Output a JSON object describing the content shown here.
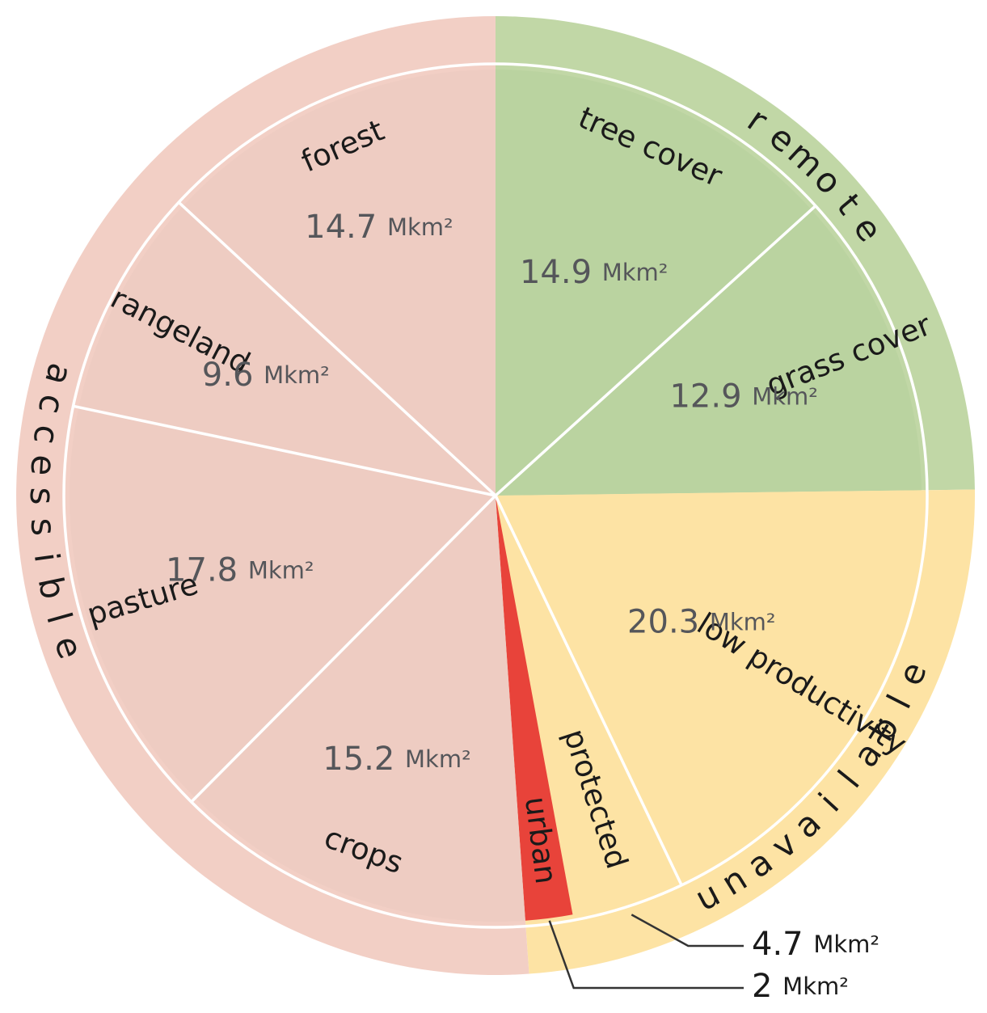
{
  "chart_data": {
    "type": "pie",
    "title": "",
    "unit": "Mkm²",
    "slices": [
      {
        "label": "tree cover",
        "value": 14.9,
        "value_text": "14.9",
        "group": "remote"
      },
      {
        "label": "grass cover",
        "value": 12.9,
        "value_text": "12.9",
        "group": "remote"
      },
      {
        "label": "low productivity",
        "value": 20.3,
        "value_text": "20.3",
        "group": "unavailable"
      },
      {
        "label": "protected",
        "value": 4.7,
        "value_text": "4.7",
        "group": "unavailable"
      },
      {
        "label": "urban",
        "value": 2,
        "value_text": "2",
        "group": "unavailable"
      },
      {
        "label": "crops",
        "value": 15.2,
        "value_text": "15.2",
        "group": "accessible"
      },
      {
        "label": "pasture",
        "value": 17.8,
        "value_text": "17.8",
        "group": "accessible"
      },
      {
        "label": "rangeland",
        "value": 9.6,
        "value_text": "9.6",
        "group": "accessible"
      },
      {
        "label": "forest",
        "value": 14.7,
        "value_text": "14.7",
        "group": "accessible"
      }
    ],
    "groups": [
      {
        "name": "remote",
        "label": "r e m o t e",
        "color": "#c1d7a6",
        "inner_color": "#bad3a0"
      },
      {
        "name": "unavailable",
        "label": "u n a v a i l a b l e",
        "color": "#fde3a4",
        "inner_color": "#fde3a4"
      },
      {
        "name": "accessible",
        "label": "a c c e s s i b l e",
        "color": "#f2cfc5",
        "inner_color": "#eeccc2"
      }
    ],
    "colors": {
      "urban": "#e8433a",
      "divider": "#ffffff",
      "callout_line": "#333333"
    }
  }
}
